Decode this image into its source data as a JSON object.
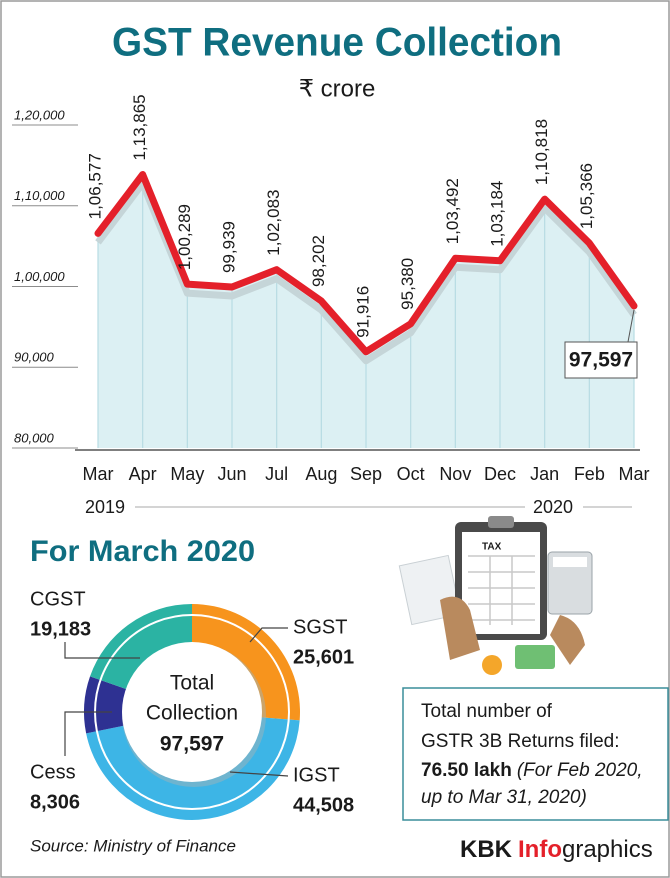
{
  "chart_data": [
    {
      "type": "line",
      "title": "GST Revenue Collection",
      "subtitle": "₹ crore",
      "categories": [
        "Mar",
        "Apr",
        "May",
        "Jun",
        "Jul",
        "Aug",
        "Sep",
        "Oct",
        "Nov",
        "Dec",
        "Jan",
        "Feb",
        "Mar"
      ],
      "x_group_labels": [
        "2019",
        "2020"
      ],
      "values": [
        106577,
        113865,
        100289,
        99939,
        102083,
        98202,
        91916,
        95380,
        103492,
        103184,
        110818,
        105366,
        97597
      ],
      "value_labels": [
        "1,06,577",
        "1,13,865",
        "1,00,289",
        "99,939",
        "1,02,083",
        "98,202",
        "91,916",
        "95,380",
        "1,03,492",
        "1,03,184",
        "1,10,818",
        "1,05,366",
        "97,597"
      ],
      "color": "#e4202a",
      "ylim": [
        80000,
        120000
      ],
      "yticks": [
        {
          "value": 80000,
          "label": "80,000"
        },
        {
          "value": 90000,
          "label": "90,000"
        },
        {
          "value": 100000,
          "label": "1,00,000"
        },
        {
          "value": 110000,
          "label": "1,10,000"
        },
        {
          "value": 120000,
          "label": "1,20,000"
        }
      ]
    },
    {
      "type": "pie",
      "title": "For March 2020",
      "categories": [
        "SGST",
        "IGST",
        "Cess",
        "CGST"
      ],
      "values": [
        25601,
        44508,
        8306,
        19183
      ],
      "value_labels": [
        "25,601",
        "44,508",
        "8,306",
        "19,183"
      ],
      "colors": [
        "#f7941d",
        "#3db5e6",
        "#2e3192",
        "#2bb3a3"
      ],
      "center_label": [
        "Total",
        "Collection"
      ],
      "total": {
        "value": 97597,
        "label": "97,597"
      }
    }
  ],
  "illustration_text": "TAX",
  "info_box": {
    "lines": [
      "Total number of",
      "GSTR 3B Returns filed:"
    ],
    "highlight": "76.50 lakh",
    "note_lines": [
      "(For Feb 2020,",
      "up to Mar 31, 2020)"
    ]
  },
  "source": "Source: Ministry of Finance",
  "brand": {
    "parts": [
      "KBK",
      "Info",
      "graphics"
    ]
  }
}
